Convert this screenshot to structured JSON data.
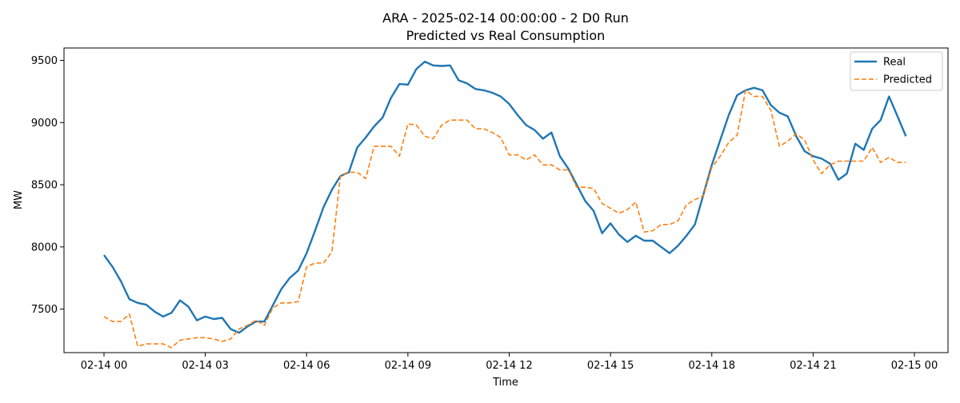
{
  "chart_data": {
    "type": "line",
    "title": "ARA - 2025-02-14 00:00:00 - 2 D0 Run",
    "subtitle": "Predicted vs Real Consumption",
    "xlabel": "Time",
    "ylabel": "MW",
    "x_ticks": [
      "02-14 00",
      "02-14 03",
      "02-14 06",
      "02-14 09",
      "02-14 12",
      "02-14 15",
      "02-14 18",
      "02-14 21",
      "02-15 00"
    ],
    "y_ticks": [
      7500,
      8000,
      8500,
      9000,
      9500
    ],
    "xlim": [
      "2025-02-14 00:00",
      "2025-02-15 00:00"
    ],
    "ylim": [
      7150,
      9600
    ],
    "grid": false,
    "legend_position": "top-right",
    "x": [
      "00:00",
      "00:15",
      "00:30",
      "00:45",
      "01:00",
      "01:15",
      "01:30",
      "01:45",
      "02:00",
      "02:15",
      "02:30",
      "02:45",
      "03:00",
      "03:15",
      "03:30",
      "03:45",
      "04:00",
      "04:15",
      "04:30",
      "04:45",
      "05:00",
      "05:15",
      "05:30",
      "05:45",
      "06:00",
      "06:15",
      "06:30",
      "06:45",
      "07:00",
      "07:15",
      "07:30",
      "07:45",
      "08:00",
      "08:15",
      "08:30",
      "08:45",
      "09:00",
      "09:15",
      "09:30",
      "09:45",
      "10:00",
      "10:15",
      "10:30",
      "10:45",
      "11:00",
      "11:15",
      "11:30",
      "11:45",
      "12:00",
      "12:15",
      "12:30",
      "12:45",
      "13:00",
      "13:15",
      "13:30",
      "13:45",
      "14:00",
      "14:15",
      "14:30",
      "14:45",
      "15:00",
      "15:15",
      "15:30",
      "15:45",
      "16:00",
      "16:15",
      "16:30",
      "16:45",
      "17:00",
      "17:15",
      "17:30",
      "17:45",
      "18:00",
      "18:15",
      "18:30",
      "18:45",
      "19:00",
      "19:15",
      "19:30",
      "19:45",
      "20:00",
      "20:15",
      "20:30",
      "20:45",
      "21:00",
      "21:15",
      "21:30",
      "21:45",
      "22:00",
      "22:15",
      "22:30",
      "22:45",
      "23:00",
      "23:15",
      "23:30",
      "23:45"
    ],
    "series": [
      {
        "name": "Real",
        "color": "#1f77b4",
        "style": "solid",
        "values": [
          7935,
          7840,
          7725,
          7580,
          7550,
          7535,
          7480,
          7440,
          7470,
          7570,
          7520,
          7410,
          7440,
          7420,
          7430,
          7340,
          7310,
          7360,
          7400,
          7400,
          7530,
          7660,
          7750,
          7810,
          7950,
          8130,
          8320,
          8460,
          8570,
          8600,
          8800,
          8880,
          8970,
          9040,
          9200,
          9310,
          9305,
          9430,
          9490,
          9460,
          9455,
          9460,
          9340,
          9315,
          9270,
          9260,
          9240,
          9210,
          9150,
          9060,
          8980,
          8940,
          8870,
          8920,
          8730,
          8630,
          8500,
          8370,
          8290,
          8110,
          8190,
          8100,
          8040,
          8090,
          8050,
          8050,
          8000,
          7950,
          8010,
          8090,
          8180,
          8420,
          8660,
          8860,
          9060,
          9220,
          9260,
          9280,
          9260,
          9140,
          9080,
          9050,
          8890,
          8770,
          8730,
          8710,
          8670,
          8540,
          8590,
          8830,
          8780,
          8950,
          9020,
          9210,
          9050,
          8890
        ]
      },
      {
        "name": "Predicted",
        "color": "#ff7f0e",
        "style": "dashed",
        "values": [
          7440,
          7400,
          7400,
          7460,
          7200,
          7220,
          7220,
          7220,
          7190,
          7250,
          7260,
          7270,
          7270,
          7260,
          7240,
          7260,
          7340,
          7370,
          7410,
          7370,
          7510,
          7550,
          7550,
          7560,
          7840,
          7870,
          7870,
          7960,
          8570,
          8600,
          8600,
          8550,
          8810,
          8810,
          8810,
          8730,
          8990,
          8980,
          8890,
          8870,
          8980,
          9020,
          9020,
          9020,
          8950,
          8950,
          8920,
          8880,
          8740,
          8740,
          8700,
          8740,
          8660,
          8660,
          8620,
          8620,
          8480,
          8480,
          8470,
          8350,
          8310,
          8270,
          8300,
          8360,
          8120,
          8130,
          8180,
          8180,
          8210,
          8340,
          8380,
          8410,
          8640,
          8730,
          8840,
          8900,
          9260,
          9210,
          9210,
          9100,
          8810,
          8850,
          8910,
          8860,
          8700,
          8590,
          8660,
          8690,
          8690,
          8690,
          8690,
          8800,
          8680,
          8720,
          8680,
          8680
        ]
      }
    ]
  }
}
